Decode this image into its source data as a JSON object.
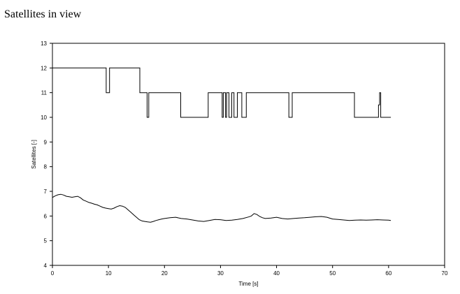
{
  "chart_data": {
    "type": "line",
    "title": "Satellites in view",
    "xlabel": "Time [s]",
    "ylabel": "Satellites [-]",
    "xlim": [
      0,
      70
    ],
    "ylim": [
      4,
      13
    ],
    "xticks": [
      "0",
      "10",
      "20",
      "30",
      "40",
      "50",
      "60",
      "70"
    ],
    "yticks": [
      "4",
      "5",
      "6",
      "7",
      "8",
      "9",
      "10",
      "11",
      "12",
      "13"
    ],
    "grid": false,
    "legend": "none",
    "line_color": "#000000",
    "series": [
      {
        "step": true,
        "x": [
          0,
          9.6,
          9.6,
          10.2,
          10.2,
          15.6,
          15.6,
          16.9,
          16.9,
          17.2,
          17.2,
          22.9,
          22.9,
          27.8,
          27.8,
          30.3,
          30.3,
          30.5,
          30.5,
          30.9,
          30.9,
          31.1,
          31.1,
          31.5,
          31.5,
          32.0,
          32.0,
          32.4,
          32.4,
          33.0,
          33.0,
          33.8,
          33.8,
          34.6,
          34.6,
          35.4,
          35.4,
          42.2,
          42.2,
          42.8,
          42.8,
          43.0,
          43.0,
          53.9,
          53.9,
          58.2,
          58.2,
          58.4,
          58.4,
          58.6,
          58.6,
          60.4
        ],
        "y": [
          12,
          12,
          11,
          11,
          12,
          12,
          11,
          11,
          10,
          10,
          11,
          11,
          10,
          10,
          11,
          11,
          10,
          10,
          11,
          11,
          10,
          10,
          11,
          11,
          10,
          10,
          11,
          11,
          10,
          10,
          11,
          11,
          10,
          10,
          11,
          11,
          11,
          11,
          10,
          10,
          11,
          11,
          11,
          11,
          10,
          10,
          10.5,
          10.5,
          11,
          11,
          10,
          10
        ]
      },
      {
        "step": false,
        "x": [
          0,
          0.5,
          1,
          1.5,
          2,
          2.5,
          3,
          3.5,
          4,
          4.5,
          5,
          5.5,
          6,
          6.5,
          7,
          7.5,
          8,
          8.5,
          9,
          9.5,
          10,
          10.5,
          11,
          11.5,
          12,
          12.5,
          13,
          13.5,
          14,
          14.5,
          15,
          15.5,
          16,
          16.5,
          17,
          17.5,
          18,
          18.5,
          19,
          19.5,
          20,
          21,
          22,
          23,
          24,
          25,
          26,
          27,
          28,
          29,
          30,
          31,
          32,
          33,
          34,
          35,
          35.5,
          36,
          36.5,
          37,
          37.5,
          38,
          39,
          40,
          41,
          42,
          43,
          44,
          45,
          46,
          47,
          48,
          49,
          50,
          51,
          52,
          53,
          54,
          55,
          56,
          57,
          58,
          59,
          60,
          60.4
        ],
        "y": [
          6.75,
          6.82,
          6.86,
          6.88,
          6.85,
          6.8,
          6.78,
          6.76,
          6.78,
          6.8,
          6.74,
          6.65,
          6.6,
          6.55,
          6.52,
          6.48,
          6.45,
          6.4,
          6.35,
          6.32,
          6.3,
          6.28,
          6.32,
          6.38,
          6.42,
          6.4,
          6.35,
          6.25,
          6.15,
          6.05,
          5.95,
          5.85,
          5.8,
          5.78,
          5.76,
          5.75,
          5.78,
          5.82,
          5.85,
          5.88,
          5.9,
          5.93,
          5.95,
          5.9,
          5.88,
          5.84,
          5.8,
          5.78,
          5.82,
          5.86,
          5.85,
          5.82,
          5.83,
          5.86,
          5.9,
          5.96,
          6.0,
          6.1,
          6.06,
          5.98,
          5.93,
          5.9,
          5.92,
          5.95,
          5.9,
          5.88,
          5.9,
          5.92,
          5.93,
          5.95,
          5.97,
          5.98,
          5.95,
          5.88,
          5.86,
          5.84,
          5.82,
          5.83,
          5.84,
          5.83,
          5.84,
          5.85,
          5.84,
          5.83,
          5.82
        ]
      }
    ]
  }
}
